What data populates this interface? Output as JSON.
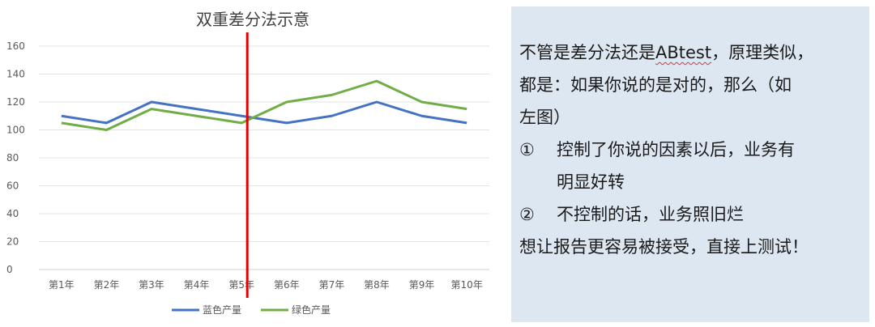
{
  "chart_data": {
    "type": "line",
    "title": "双重差分法示意",
    "categories": [
      "第1年",
      "第2年",
      "第3年",
      "第4年",
      "第5年",
      "第6年",
      "第7年",
      "第8年",
      "第9年",
      "第10年"
    ],
    "series": [
      {
        "name": "蓝色产量",
        "color": "#4472c4",
        "values": [
          110,
          105,
          120,
          115,
          110,
          105,
          110,
          120,
          110,
          105
        ]
      },
      {
        "name": "绿色产量",
        "color": "#70ad47",
        "values": [
          105,
          100,
          115,
          110,
          105,
          120,
          125,
          135,
          120,
          115
        ]
      }
    ],
    "ylim": [
      0,
      160
    ],
    "yticks": [
      0,
      20,
      40,
      60,
      80,
      100,
      120,
      140,
      160
    ],
    "grid": true,
    "legend": "bottom",
    "vline": {
      "category": "第5年",
      "color": "#e00000"
    }
  },
  "note": {
    "line1_pre": "不管是差分法还是",
    "line1_u": "ABtest",
    "line1_post": "，原理类似，",
    "line2": "都是：如果你说的是对的，那么（如",
    "line3": "左图）",
    "item1_mark": "①",
    "item1_a": "控制了你说的因素以后，业务有",
    "item1_b": "明显好转",
    "item2_mark": "②",
    "item2": "不控制的话，业务照旧烂",
    "line_last": "想让报告更容易被接受，直接上测试！"
  }
}
